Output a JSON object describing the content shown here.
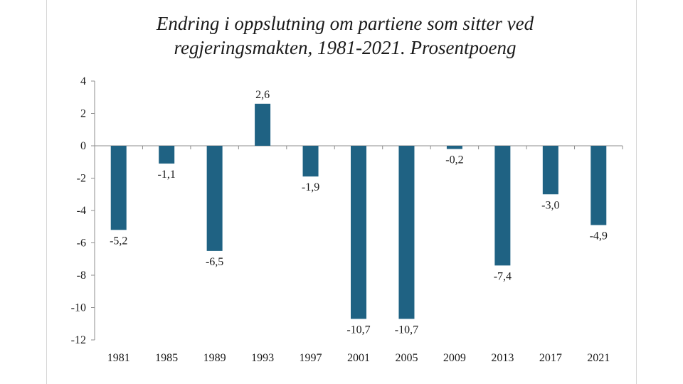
{
  "chart_data": {
    "type": "bar",
    "title_lines": [
      "Endring i oppslutning om partiene som sitter ved",
      "regjeringsmakten, 1981-2021. Prosentpoeng"
    ],
    "xlabel": "",
    "ylabel": "",
    "categories": [
      "1981",
      "1985",
      "1989",
      "1993",
      "1997",
      "2001",
      "2005",
      "2009",
      "2013",
      "2017",
      "2021"
    ],
    "values": [
      -5.2,
      -1.1,
      -6.5,
      2.6,
      -1.9,
      -10.7,
      -10.7,
      -0.2,
      -7.4,
      -3.0,
      -4.9
    ],
    "data_labels": [
      "-5,2",
      "-1,1",
      "-6,5",
      "2,6",
      "-1,9",
      "-10,7",
      "-10,7",
      "-0,2",
      "-7,4",
      "-3,0",
      "-4,9"
    ],
    "ylim": [
      -12,
      4
    ],
    "yticks": [
      4,
      2,
      0,
      -2,
      -4,
      -6,
      -8,
      -10,
      -12
    ],
    "ytick_labels": [
      "4",
      "2",
      "0",
      "-2",
      "-4",
      "-6",
      "-8",
      "-10",
      "-12"
    ],
    "bar_color": "#1f6283",
    "grid": false,
    "legend": "none"
  }
}
